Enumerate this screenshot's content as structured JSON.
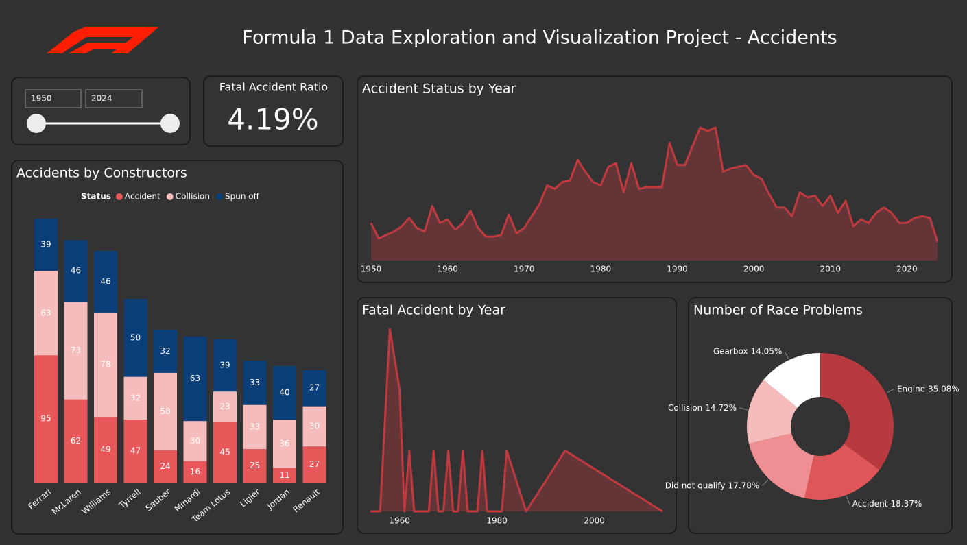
{
  "header": {
    "title": "Formula 1 Data Exploration and Visualization Project - Accidents"
  },
  "slicer": {
    "from": "1950",
    "to": "2024"
  },
  "kpi": {
    "title": "Fatal Accident Ratio",
    "value": "4.19%"
  },
  "chart_data": [
    {
      "type": "bar",
      "stacked": true,
      "title": "Accidents by Constructors",
      "legend_title": "Status",
      "categories": [
        "Ferrari",
        "McLaren",
        "Williams",
        "Tyrrell",
        "Sauber",
        "Minardi",
        "Team Lotus",
        "Ligier",
        "Jordan",
        "Renault"
      ],
      "series": [
        {
          "name": "Accident",
          "color": "#e8585b",
          "values": [
            95,
            62,
            49,
            47,
            24,
            16,
            45,
            25,
            11,
            27
          ]
        },
        {
          "name": "Collision",
          "color": "#f6bcbc",
          "values": [
            63,
            73,
            78,
            32,
            58,
            30,
            23,
            33,
            36,
            30
          ]
        },
        {
          "name": "Spun off",
          "color": "#0b3f7a",
          "values": [
            39,
            46,
            46,
            58,
            32,
            63,
            39,
            33,
            40,
            27
          ]
        }
      ]
    },
    {
      "type": "area",
      "title": "Accident Status by Year",
      "color": "#c0393f",
      "x": [
        1950,
        1951,
        1952,
        1953,
        1954,
        1955,
        1956,
        1957,
        1958,
        1959,
        1960,
        1961,
        1962,
        1963,
        1964,
        1965,
        1966,
        1967,
        1968,
        1969,
        1970,
        1971,
        1972,
        1973,
        1974,
        1975,
        1976,
        1977,
        1978,
        1979,
        1980,
        1981,
        1982,
        1983,
        1984,
        1985,
        1986,
        1987,
        1988,
        1989,
        1990,
        1991,
        1992,
        1993,
        1994,
        1995,
        1996,
        1997,
        1998,
        1999,
        2000,
        2001,
        2002,
        2003,
        2004,
        2005,
        2006,
        2007,
        2008,
        2009,
        2010,
        2011,
        2012,
        2013,
        2014,
        2015,
        2016,
        2017,
        2018,
        2019,
        2020,
        2021,
        2022,
        2023,
        2024
      ],
      "values": [
        22,
        13,
        15,
        17,
        20,
        25,
        19,
        17,
        32,
        22,
        24,
        18,
        22,
        29,
        19,
        14,
        14,
        15,
        27,
        16,
        19,
        26,
        33,
        44,
        42,
        46,
        47,
        59,
        52,
        46,
        44,
        55,
        57,
        40,
        57,
        42,
        43,
        43,
        43,
        69,
        56,
        56,
        67,
        78,
        76,
        78,
        52,
        54,
        55,
        56,
        50,
        48,
        39,
        31,
        31,
        26,
        40,
        37,
        38,
        32,
        38,
        28,
        35,
        20,
        24,
        22,
        28,
        31,
        28,
        22,
        22,
        25,
        26,
        25,
        11
      ],
      "xlim": [
        1950,
        2024
      ],
      "xticks": [
        1950,
        1960,
        1970,
        1980,
        1990,
        2000,
        2010,
        2020
      ]
    },
    {
      "type": "area",
      "title": "Fatal Accident by Year",
      "color": "#c0393f",
      "x": [
        1954,
        1956,
        1958,
        1960,
        1961,
        1962,
        1963,
        1966,
        1967,
        1968,
        1969,
        1970,
        1971,
        1972,
        1973,
        1974,
        1976,
        1977,
        1978,
        1981,
        1982,
        1986,
        1994,
        2014
      ],
      "values": [
        0,
        0,
        3,
        2,
        0,
        1,
        0,
        0,
        1,
        0,
        0,
        1,
        0,
        0,
        1,
        0,
        0,
        1,
        0,
        0,
        1,
        0,
        1,
        0
      ],
      "xlim": [
        1954,
        2014
      ],
      "xticks": [
        1960,
        1980,
        2000
      ]
    },
    {
      "type": "pie",
      "donut": true,
      "title": "Number of Race Problems",
      "categories": [
        "Engine",
        "Accident",
        "Did not qualify",
        "Collision",
        "Gearbox"
      ],
      "values": [
        35.08,
        18.37,
        17.78,
        14.72,
        14.05
      ],
      "value_labels": [
        "35.08%",
        "18.37%",
        "17.78%",
        "14.72%",
        "14.05%"
      ],
      "colors": [
        "#b83a3e",
        "#e05558",
        "#f08f93",
        "#f6bcbc",
        "#ffffff"
      ]
    }
  ]
}
